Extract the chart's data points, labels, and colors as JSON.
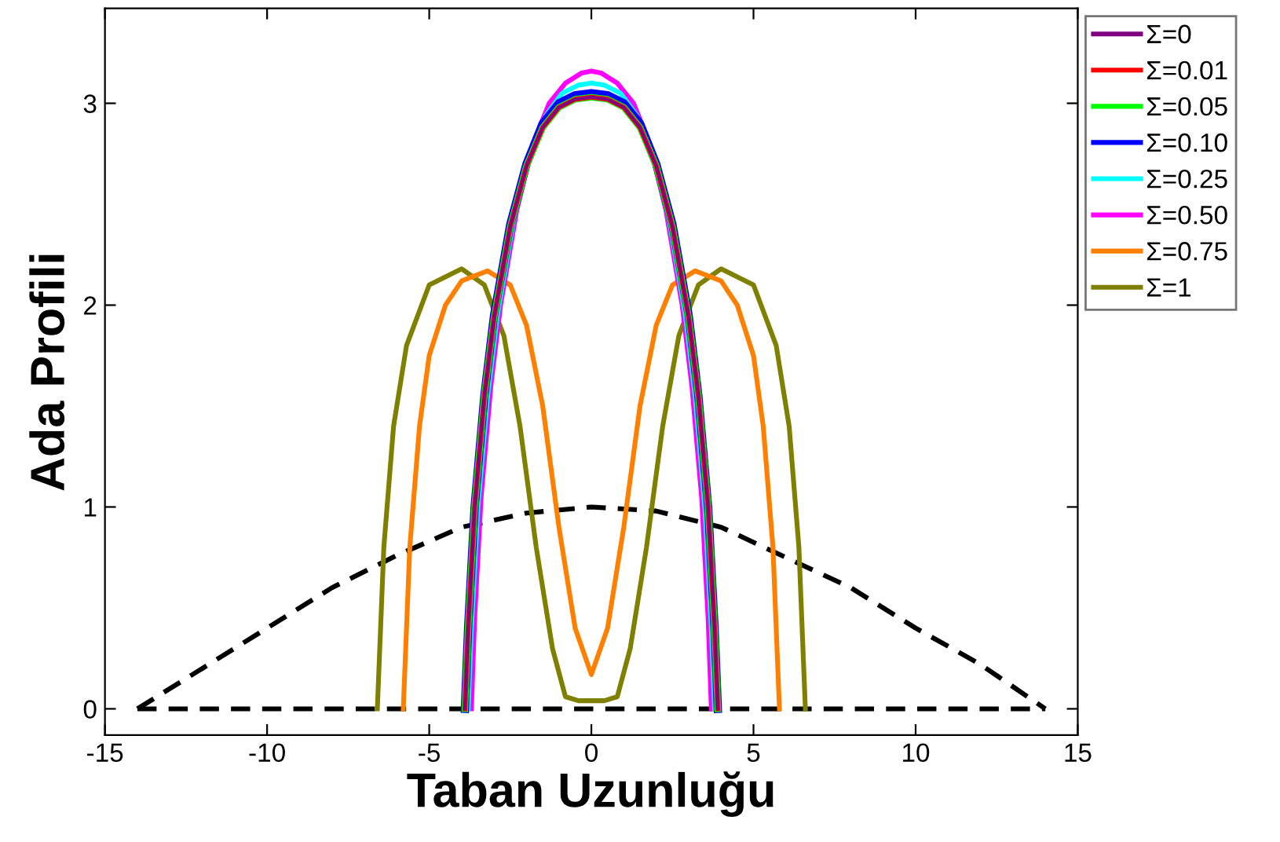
{
  "chart_data": {
    "type": "line",
    "xlabel": "Taban Uzunluğu",
    "ylabel": "Ada Profili",
    "xlim": [
      -15,
      15
    ],
    "ylim": [
      -0.13,
      3.47
    ],
    "xticks": [
      -15,
      -10,
      -5,
      0,
      5,
      10,
      15
    ],
    "yticks": [
      0,
      1,
      2,
      3
    ],
    "grid": false,
    "legend": "top right",
    "marker": "none",
    "series": [
      {
        "name": "Σ=0",
        "color": "#800080",
        "x": [
          -3.9,
          -3.8,
          -3.6,
          -3.3,
          -3,
          -2.5,
          -2,
          -1.5,
          -1,
          -0.5,
          0,
          0.5,
          1,
          1.5,
          2,
          2.5,
          3,
          3.3,
          3.6,
          3.8,
          3.9
        ],
        "values": [
          0,
          0.4,
          1.0,
          1.55,
          1.94,
          2.39,
          2.69,
          2.88,
          2.98,
          3.02,
          3.03,
          3.02,
          2.98,
          2.88,
          2.69,
          2.39,
          1.94,
          1.55,
          1.0,
          0.4,
          0
        ]
      },
      {
        "name": "Σ=0.01",
        "color": "#ff0000",
        "x": [
          -3.9,
          -3.8,
          -3.6,
          -3.3,
          -3,
          -2.5,
          -2,
          -1.5,
          -1,
          -0.5,
          0,
          0.5,
          1,
          1.5,
          2,
          2.5,
          3,
          3.3,
          3.6,
          3.8,
          3.9
        ],
        "values": [
          0,
          0.4,
          1.0,
          1.55,
          1.94,
          2.39,
          2.69,
          2.88,
          2.98,
          3.02,
          3.03,
          3.02,
          2.98,
          2.88,
          2.69,
          2.39,
          1.94,
          1.55,
          1.0,
          0.4,
          0
        ]
      },
      {
        "name": "Σ=0.05",
        "color": "#00ff00",
        "x": [
          -3.9,
          -3.8,
          -3.6,
          -3.3,
          -3,
          -2.5,
          -2,
          -1.5,
          -1,
          -0.5,
          0,
          0.5,
          1,
          1.5,
          2,
          2.5,
          3,
          3.3,
          3.6,
          3.8,
          3.9
        ],
        "values": [
          0,
          0.4,
          1.0,
          1.55,
          1.94,
          2.39,
          2.69,
          2.88,
          2.98,
          3.02,
          3.03,
          3.02,
          2.98,
          2.88,
          2.69,
          2.39,
          1.94,
          1.55,
          1.0,
          0.4,
          0
        ]
      },
      {
        "name": "Σ=0.10",
        "color": "#0000ff",
        "x": [
          -3.9,
          -3.8,
          -3.6,
          -3.3,
          -3,
          -2.5,
          -2,
          -1.5,
          -1,
          -0.5,
          0,
          0.5,
          1,
          1.5,
          2,
          2.5,
          3,
          3.3,
          3.6,
          3.8,
          3.9
        ],
        "values": [
          0,
          0.4,
          1.0,
          1.55,
          1.95,
          2.4,
          2.7,
          2.9,
          3.0,
          3.04,
          3.05,
          3.04,
          3.0,
          2.9,
          2.7,
          2.4,
          1.95,
          1.55,
          1.0,
          0.4,
          0
        ]
      },
      {
        "name": "Σ=0.25",
        "color": "#00ffff",
        "x": [
          -3.8,
          -3.7,
          -3.5,
          -3.2,
          -2.9,
          -2.4,
          -1.9,
          -1.4,
          -0.9,
          -0.4,
          0,
          0.4,
          0.9,
          1.4,
          1.9,
          2.4,
          2.9,
          3.2,
          3.5,
          3.7,
          3.8
        ],
        "values": [
          0,
          0.4,
          1.0,
          1.55,
          1.95,
          2.42,
          2.74,
          2.94,
          3.05,
          3.09,
          3.1,
          3.09,
          3.05,
          2.94,
          2.74,
          2.42,
          1.95,
          1.55,
          1.0,
          0.4,
          0
        ]
      },
      {
        "name": "Σ=0.50",
        "color": "#ff00ff",
        "x": [
          -3.7,
          -3.6,
          -3.4,
          -3.1,
          -2.8,
          -2.3,
          -1.8,
          -1.3,
          -0.8,
          -0.3,
          0,
          0.3,
          0.8,
          1.3,
          1.8,
          2.3,
          2.8,
          3.1,
          3.4,
          3.6,
          3.7
        ],
        "values": [
          0,
          0.45,
          1.05,
          1.6,
          2.0,
          2.47,
          2.8,
          3.0,
          3.1,
          3.15,
          3.16,
          3.15,
          3.1,
          3.0,
          2.8,
          2.47,
          2.0,
          1.6,
          1.05,
          0.45,
          0
        ]
      },
      {
        "name": "Σ=0.75",
        "color": "#ff8000",
        "x": [
          -5.8,
          -5.6,
          -5.3,
          -5,
          -4.5,
          -4,
          -3.2,
          -2.5,
          -2,
          -1.5,
          -1,
          -0.5,
          0,
          0.5,
          1,
          1.5,
          2,
          2.5,
          3.2,
          4,
          4.5,
          5,
          5.3,
          5.6,
          5.8
        ],
        "values": [
          0,
          0.8,
          1.4,
          1.75,
          2.0,
          2.12,
          2.17,
          2.1,
          1.9,
          1.5,
          0.9,
          0.4,
          0.17,
          0.4,
          0.9,
          1.5,
          1.9,
          2.1,
          2.17,
          2.12,
          2.0,
          1.75,
          1.4,
          0.8,
          0
        ]
      },
      {
        "name": "Σ=1",
        "color": "#808000",
        "x": [
          -6.6,
          -6.4,
          -6.1,
          -5.7,
          -5,
          -4,
          -3.3,
          -2.7,
          -2.2,
          -1.7,
          -1.2,
          -0.8,
          -0.4,
          0,
          0.4,
          0.8,
          1.2,
          1.7,
          2.2,
          2.7,
          3.3,
          4,
          5,
          5.7,
          6.1,
          6.4,
          6.6
        ],
        "values": [
          0,
          0.8,
          1.4,
          1.8,
          2.1,
          2.18,
          2.1,
          1.85,
          1.4,
          0.8,
          0.3,
          0.06,
          0.04,
          0.04,
          0.04,
          0.06,
          0.3,
          0.8,
          1.4,
          1.85,
          2.1,
          2.18,
          2.1,
          1.8,
          1.4,
          0.8,
          0
        ]
      },
      {
        "color": "#000000",
        "line_style": "dashed",
        "x": [
          -14,
          -12,
          -10,
          -8,
          -6,
          -4,
          -2,
          0,
          2,
          4,
          6,
          8,
          10,
          12,
          14
        ],
        "values": [
          0,
          0.2,
          0.4,
          0.6,
          0.76,
          0.9,
          0.97,
          1,
          0.98,
          0.9,
          0.75,
          0.6,
          0.4,
          0.22,
          0
        ]
      },
      {
        "color": "#000000",
        "line_style": "dashed",
        "x": [
          -14,
          14
        ],
        "values": [
          0,
          0
        ]
      }
    ]
  }
}
